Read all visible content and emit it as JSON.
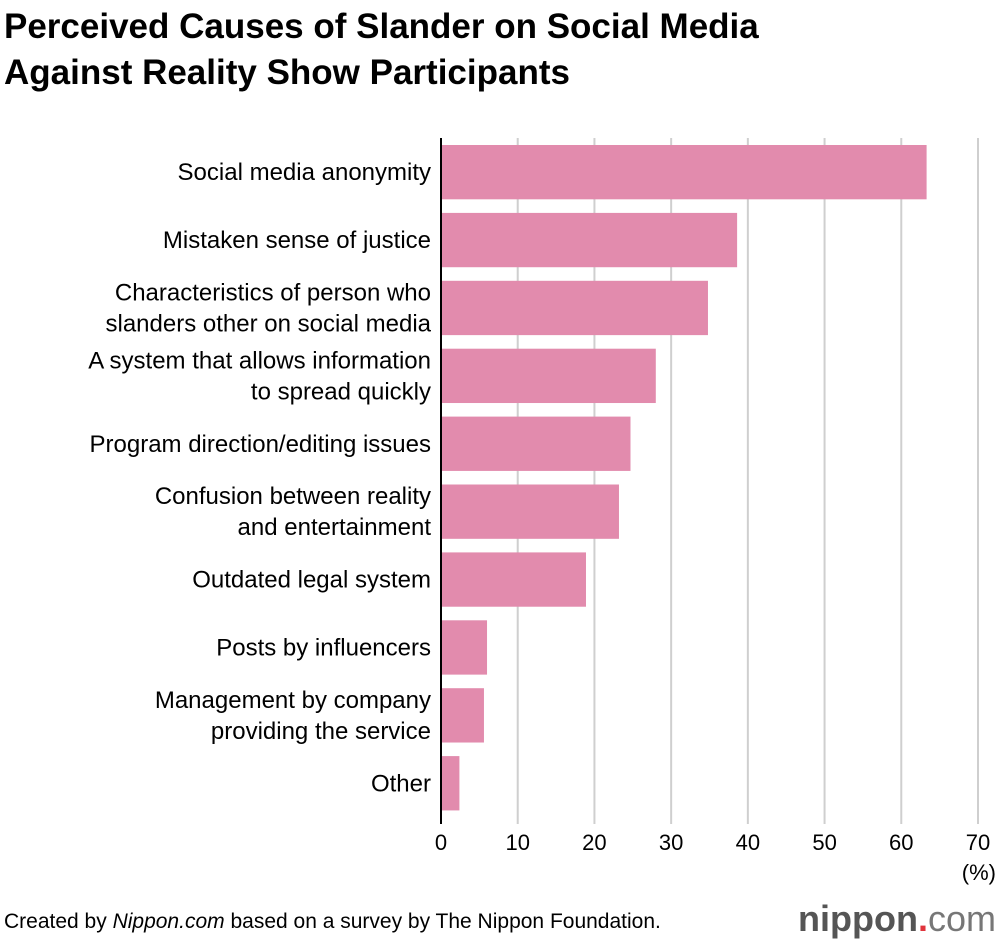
{
  "chart_data": {
    "type": "bar",
    "orientation": "horizontal",
    "title_lines": [
      "Perceived Causes of Slander on Social Media",
      "Against Reality Show Participants"
    ],
    "categories": [
      [
        "Social media anonymity"
      ],
      [
        "Mistaken sense of justice"
      ],
      [
        "Characteristics of person who",
        "slanders other on social media"
      ],
      [
        "A system that allows information",
        "to spread quickly"
      ],
      [
        "Program direction/editing issues"
      ],
      [
        "Confusion between reality",
        "and entertainment"
      ],
      [
        "Outdated legal system"
      ],
      [
        "Posts by influencers"
      ],
      [
        "Management by company",
        "providing the service"
      ],
      [
        "Other"
      ]
    ],
    "values": [
      63.3,
      38.6,
      34.8,
      28.0,
      24.7,
      23.2,
      18.9,
      6.0,
      5.6,
      2.4
    ],
    "xlim": [
      0,
      70
    ],
    "xticks": [
      0,
      10,
      20,
      30,
      40,
      50,
      60,
      70
    ],
    "xlabel": "(%)",
    "grid": true,
    "bar_color": "#e28bad"
  },
  "footer": {
    "prefix": "Created by ",
    "source_italic": "Nippon.com",
    "suffix": " based on a survey by The Nippon Foundation."
  },
  "logo": {
    "name": "nippon",
    "dot": ".",
    "com": "com"
  }
}
